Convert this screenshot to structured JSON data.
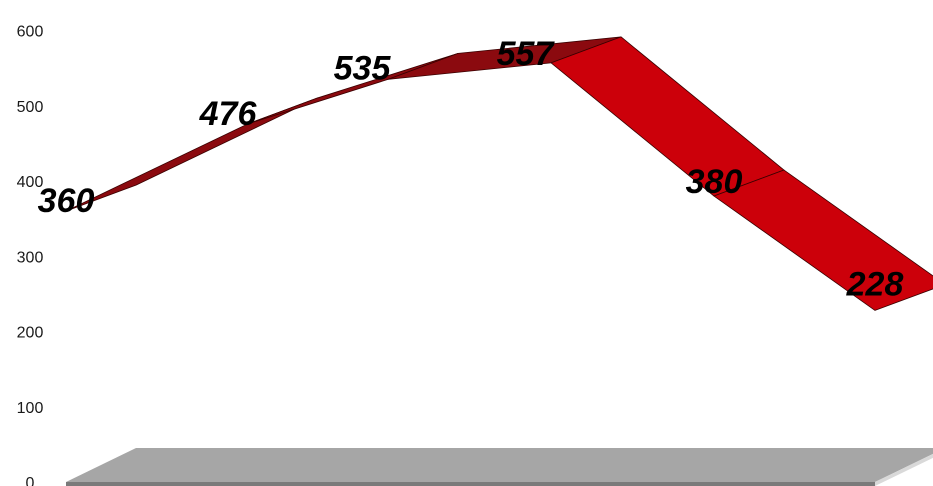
{
  "chart_data": {
    "type": "area",
    "style": "3d-ribbon",
    "categories": [
      "",
      "",
      "",
      "",
      "",
      ""
    ],
    "values": [
      360,
      476,
      535,
      557,
      380,
      228
    ],
    "ylim": [
      0,
      600
    ],
    "yticks": [
      0,
      100,
      200,
      300,
      400,
      500,
      600
    ],
    "grid": false,
    "legend": "none",
    "colors": {
      "ribbon_front": "#cc000a",
      "ribbon_top": "#8b0a0f",
      "ribbon_edge": "#3a0000",
      "floor_top": "#a6a6a6",
      "floor_front": "#7a7a7a",
      "floor_side": "#d9d9d9"
    }
  }
}
